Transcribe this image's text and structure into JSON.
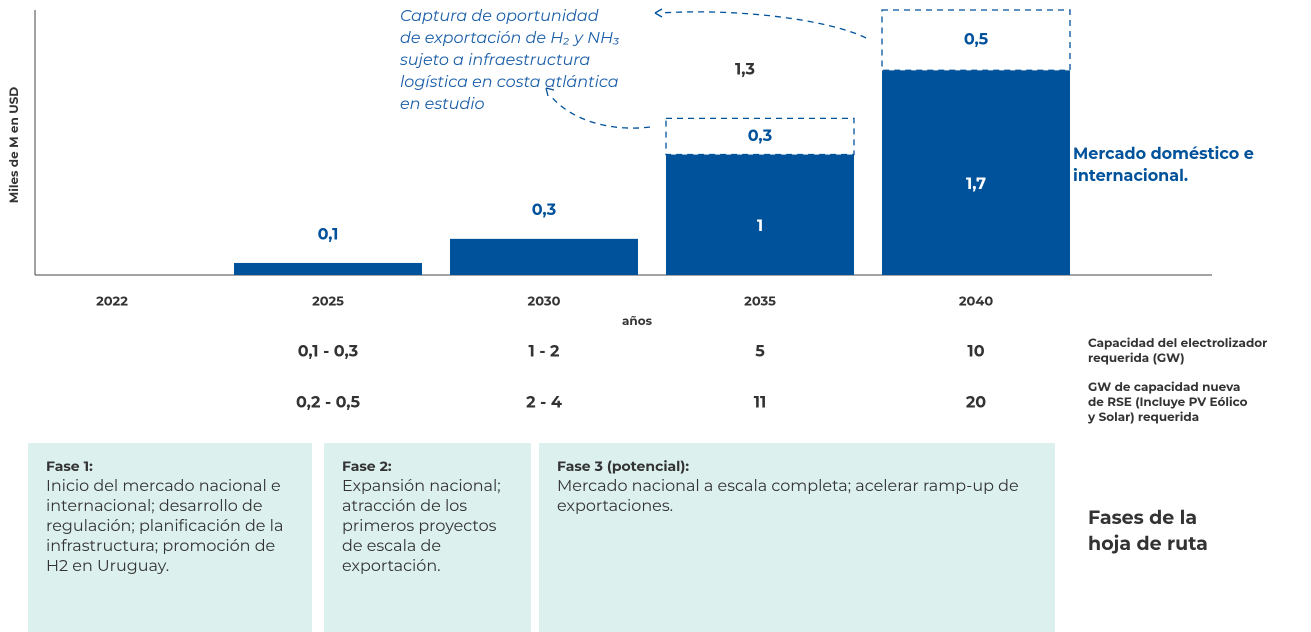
{
  "chart_data": {
    "type": "stacked_bar",
    "y_axis_label": "Miles de M en USD",
    "x_axis_label": "años",
    "categories": [
      "2022",
      "2025",
      "2030",
      "2035",
      "2040"
    ],
    "ylim": [
      0,
      2.2
    ],
    "series": [
      {
        "name": "Mercado doméstico",
        "color": "#00529b",
        "style": "solid",
        "values": [
          null,
          0.1,
          0.3,
          1,
          1.7
        ],
        "value_labels": [
          null,
          "0,1",
          "0,3",
          "1",
          "1,7"
        ]
      },
      {
        "name": "Exportación",
        "color": "#00529b",
        "style": "dashed",
        "values": [
          null,
          null,
          null,
          0.3,
          0.5
        ],
        "value_labels": [
          null,
          null,
          null,
          "0,3",
          "0,5"
        ]
      }
    ],
    "annotations": [
      {
        "text": "1,3"
      },
      {
        "text": "Mercado doméstico e internacional."
      },
      {
        "lines": [
          "Captura de oportunidad",
          "de exportación de H₂ y NH₃",
          "sujeto a infraestructura",
          "logística en costa atlántica",
          "en estudio"
        ]
      }
    ]
  },
  "capacity_table": {
    "rows": [
      {
        "label": "Capacidad del electrolizador requerida (GW)",
        "values": [
          "0,1 - 0,3",
          "1 - 2",
          "5",
          "10"
        ]
      },
      {
        "label": "GW de capacidad nueva de RSE (Incluye PV Eólico y Solar) requerida",
        "values": [
          "0,2 - 0,5",
          "2 - 4",
          "11",
          "20"
        ]
      }
    ]
  },
  "phases": {
    "title": "Fases de la hoja de ruta",
    "items": [
      {
        "title": "Fase 1:",
        "text": "Inicio del mercado nacional e internacional; desarrollo  de regulación; planificación de la infrastructura; promoción de H2 en Uruguay."
      },
      {
        "title": "Fase 2:",
        "text": "Expansión nacional; atracción de los primeros proyectos de escala de exportación."
      },
      {
        "title": "Fase 3 (potencial):",
        "text": "Mercado nacional a escala completa; acelerar ramp-up de exportaciones."
      }
    ]
  }
}
